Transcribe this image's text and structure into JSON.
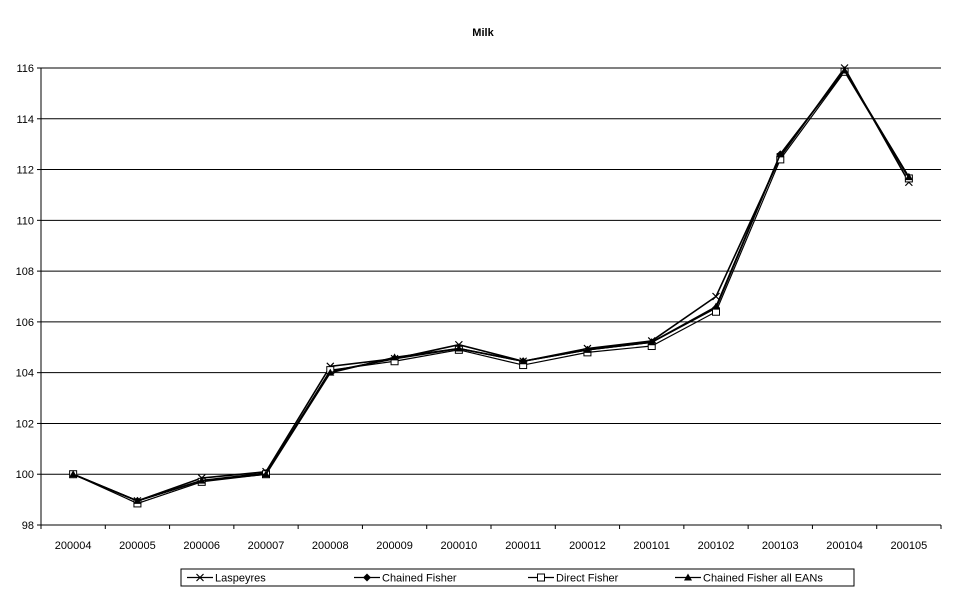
{
  "chart_data": {
    "type": "line",
    "title": "Milk",
    "xlabel": "",
    "ylabel": "",
    "categories": [
      "200004",
      "200005",
      "200006",
      "200007",
      "200008",
      "200009",
      "200010",
      "200011",
      "200012",
      "200101",
      "200102",
      "200103",
      "200104",
      "200105"
    ],
    "ylim": [
      98,
      116
    ],
    "yticks": [
      98,
      100,
      102,
      104,
      106,
      108,
      110,
      112,
      114,
      116
    ],
    "grid": true,
    "legend_position": "bottom",
    "series": [
      {
        "name": "Laspeyres",
        "marker": "x",
        "color": "#000000",
        "values": [
          100.0,
          98.95,
          99.85,
          100.1,
          104.25,
          104.55,
          105.1,
          104.45,
          104.95,
          105.25,
          107.0,
          112.5,
          116.0,
          111.5
        ]
      },
      {
        "name": "Chained Fisher",
        "marker": "diamond",
        "color": "#000000",
        "values": [
          100.0,
          98.95,
          99.75,
          100.05,
          104.05,
          104.55,
          104.95,
          104.45,
          104.9,
          105.2,
          106.55,
          112.6,
          115.9,
          111.7
        ]
      },
      {
        "name": "Direct Fisher",
        "marker": "square-open",
        "color": "#000000",
        "values": [
          100.0,
          98.85,
          99.7,
          100.0,
          104.1,
          104.45,
          104.9,
          104.3,
          104.8,
          105.05,
          106.4,
          112.4,
          115.85,
          111.65
        ]
      },
      {
        "name": "Chained Fisher all EANs",
        "marker": "triangle",
        "color": "#000000",
        "values": [
          100.0,
          98.95,
          99.75,
          100.0,
          104.0,
          104.6,
          104.95,
          104.45,
          104.9,
          105.2,
          106.6,
          112.6,
          115.9,
          111.7
        ]
      }
    ]
  }
}
